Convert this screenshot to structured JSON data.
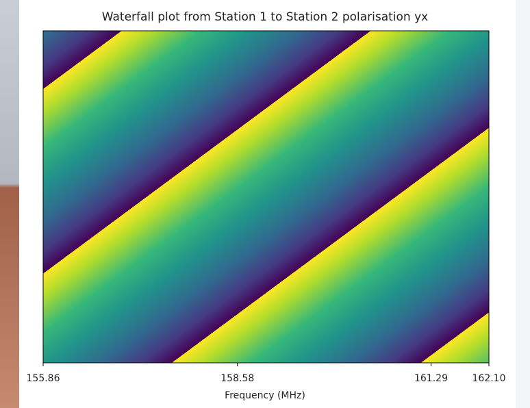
{
  "chart_data": {
    "type": "waterfall",
    "title": "Waterfall plot from Station 1 to Station 2 polarisation yx",
    "x_label": "Frequency (MHz)",
    "xlim": [
      155.86,
      162.1
    ],
    "xticks": [
      155.86,
      158.58,
      161.29,
      {
        "value": 162.1,
        "label": "162.10"
      }
    ]
  }
}
